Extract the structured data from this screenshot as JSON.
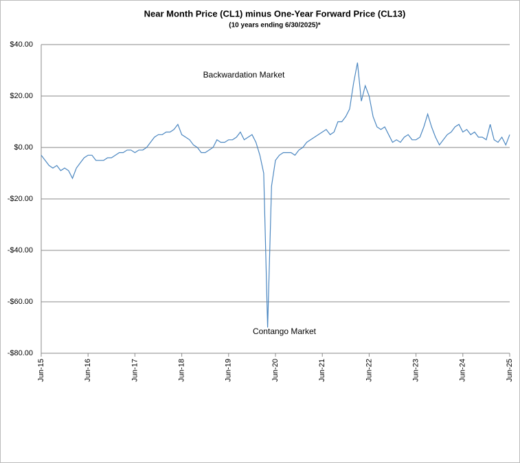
{
  "chart_data": {
    "type": "line",
    "title": "Near Month Price (CL1) minus One-Year Forward Price (CL13)",
    "subtitle": "(10 years ending  6/30/2025)*",
    "annotations": [
      "Backwardation Market",
      "Contango Market"
    ],
    "categories": [
      "Jun-15",
      null,
      null,
      null,
      null,
      null,
      null,
      null,
      null,
      null,
      null,
      null,
      "Jun-16",
      null,
      null,
      null,
      null,
      null,
      null,
      null,
      null,
      null,
      null,
      null,
      "Jun-17",
      null,
      null,
      null,
      null,
      null,
      null,
      null,
      null,
      null,
      null,
      null,
      "Jun-18",
      null,
      null,
      null,
      null,
      null,
      null,
      null,
      null,
      null,
      null,
      null,
      "Jun-19",
      null,
      null,
      null,
      null,
      null,
      null,
      null,
      null,
      null,
      null,
      null,
      "Jun-20",
      null,
      null,
      null,
      null,
      null,
      null,
      null,
      null,
      null,
      null,
      null,
      "Jun-21",
      null,
      null,
      null,
      null,
      null,
      null,
      null,
      null,
      null,
      null,
      null,
      "Jun-22",
      null,
      null,
      null,
      null,
      null,
      null,
      null,
      null,
      null,
      null,
      null,
      "Jun-23",
      null,
      null,
      null,
      null,
      null,
      null,
      null,
      null,
      null,
      null,
      null,
      "Jun-24",
      null,
      null,
      null,
      null,
      null,
      null,
      null,
      null,
      null,
      null,
      null,
      "Jun-25"
    ],
    "values": [
      -3,
      -5,
      -7,
      -8,
      -7,
      -9,
      -8,
      -9,
      -12,
      -8,
      -6,
      -4,
      -3,
      -3,
      -5,
      -5,
      -5,
      -4,
      -4,
      -3,
      -2,
      -2,
      -1,
      -1,
      -2,
      -1,
      -1,
      0,
      2,
      4,
      5,
      5,
      6,
      6,
      7,
      9,
      5,
      4,
      3,
      1,
      0,
      -2,
      -2,
      -1,
      0,
      3,
      2,
      2,
      3,
      3,
      4,
      6,
      3,
      4,
      5,
      2,
      -3,
      -10,
      -70,
      -15,
      -5,
      -3,
      -2,
      -2,
      -2,
      -3,
      -1,
      0,
      2,
      3,
      4,
      5,
      6,
      7,
      5,
      6,
      10,
      10,
      12,
      15,
      25,
      33,
      18,
      24,
      20,
      12,
      8,
      7,
      8,
      5,
      2,
      3,
      2,
      4,
      5,
      3,
      3,
      4,
      8,
      13,
      8,
      4,
      1,
      3,
      5,
      6,
      8,
      9,
      6,
      7,
      5,
      6,
      4,
      4,
      3,
      9,
      3,
      2,
      4,
      1,
      5
    ],
    "color": "#4a86c0",
    "ylim": [
      -80,
      40
    ],
    "yticks": [
      {
        "value": -80,
        "label": "-$80.00"
      },
      {
        "value": -60,
        "label": "-$60.00"
      },
      {
        "value": -40,
        "label": "-$40.00"
      },
      {
        "value": -20,
        "label": "-$20.00"
      },
      {
        "value": 0,
        "label": "$0.00"
      },
      {
        "value": 20,
        "label": "$20.00"
      },
      {
        "value": 40,
        "label": "$40.00"
      }
    ],
    "grid": true
  }
}
